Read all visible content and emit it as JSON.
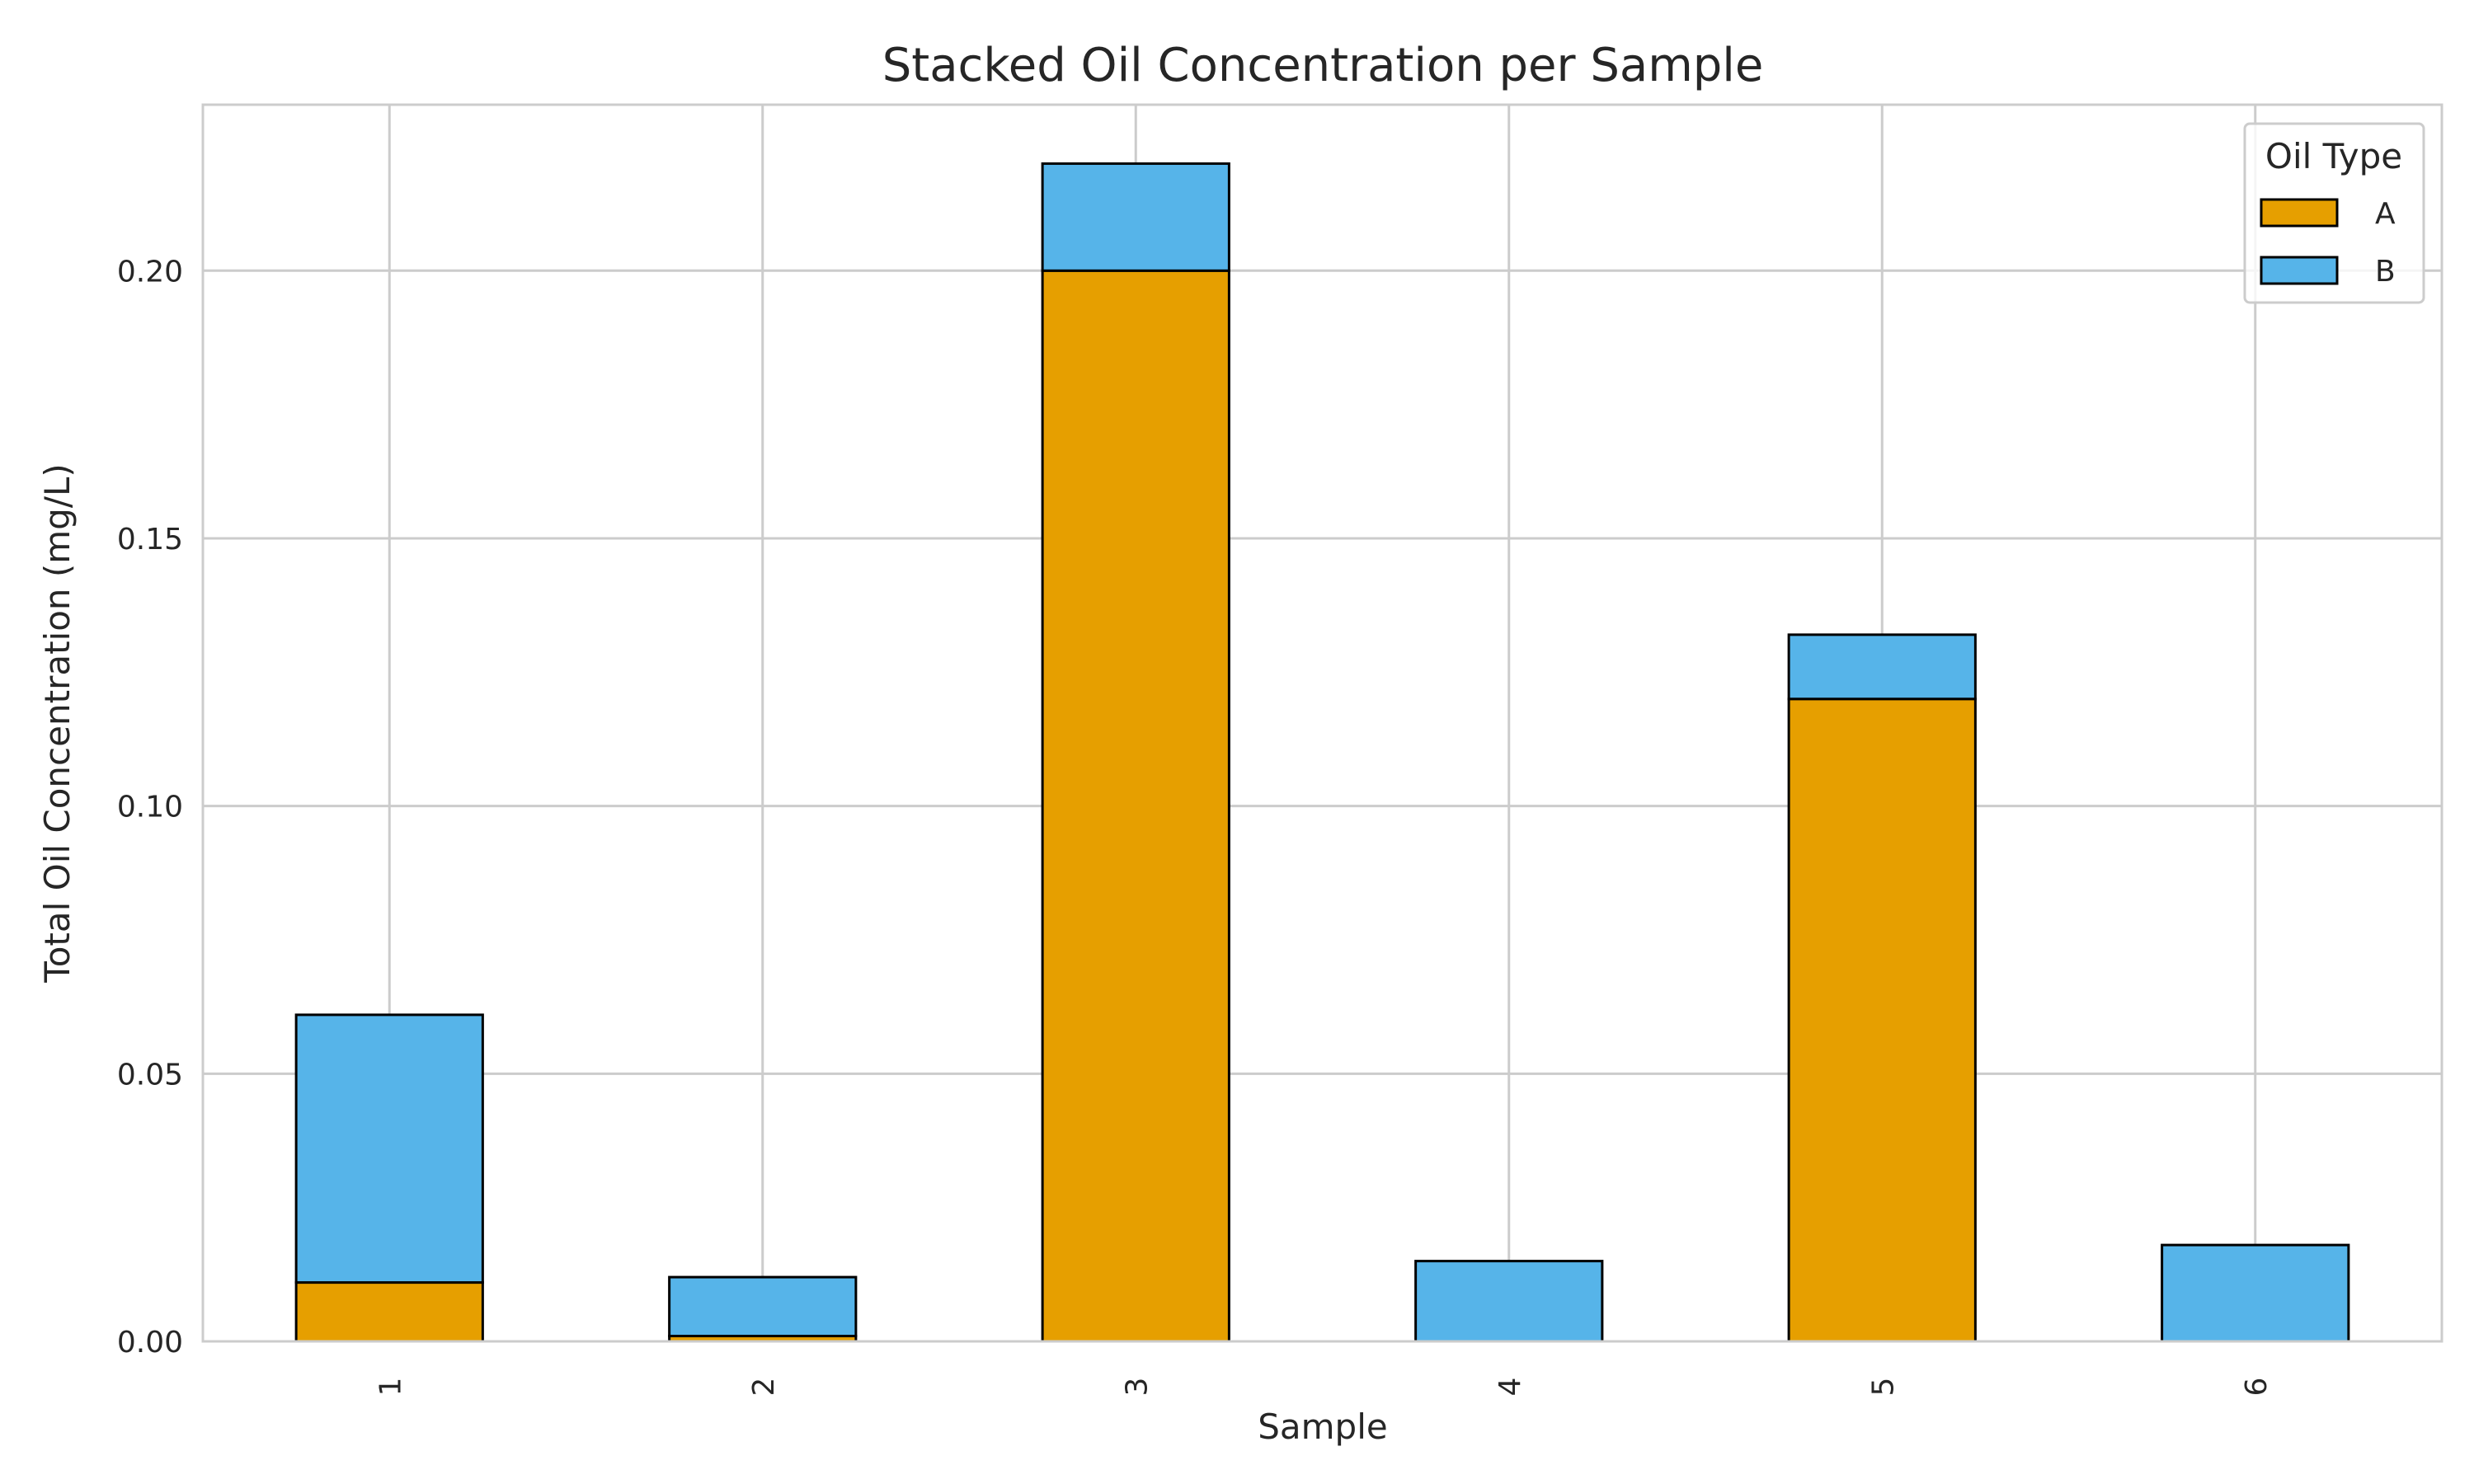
{
  "chart_data": {
    "type": "bar",
    "stacked": true,
    "title": "Stacked Oil Concentration per Sample",
    "xlabel": "Sample",
    "ylabel": "Total Oil Concentration (mg/L)",
    "categories": [
      "1",
      "2",
      "3",
      "4",
      "5",
      "6"
    ],
    "series": [
      {
        "name": "A",
        "color": "#E69F00",
        "values": [
          0.011,
          0.001,
          0.2,
          0.0,
          0.12,
          0.0
        ]
      },
      {
        "name": "B",
        "color": "#56B4E9",
        "values": [
          0.05,
          0.011,
          0.02,
          0.015,
          0.012,
          0.018
        ]
      }
    ],
    "ylim": [
      0,
      0.231
    ],
    "yticks": [
      "0.00",
      "0.05",
      "0.10",
      "0.15",
      "0.20"
    ],
    "grid": true,
    "legend": {
      "title": "Oil Type",
      "position": "upper right"
    }
  }
}
